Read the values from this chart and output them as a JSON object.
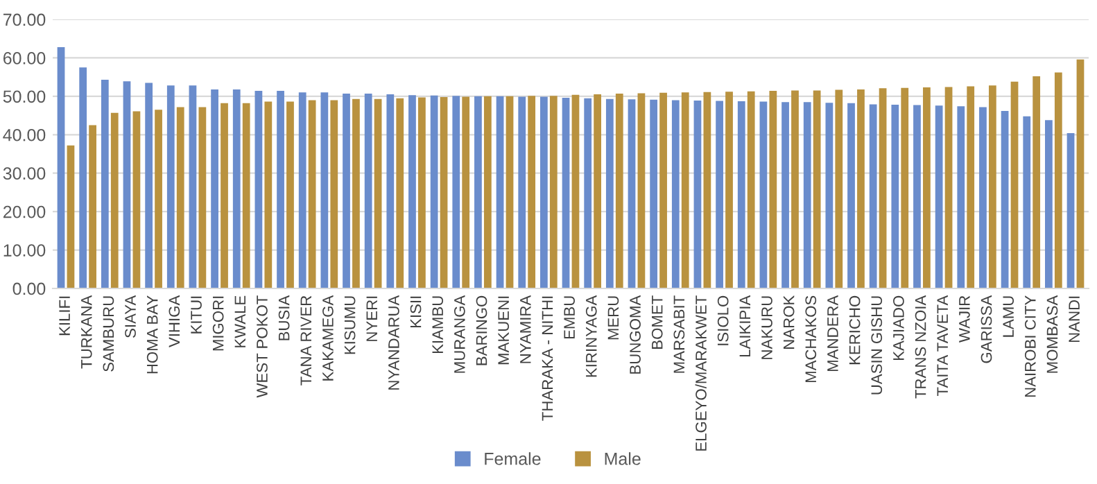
{
  "chart_data": {
    "type": "bar",
    "categories": [
      "KILIFI",
      "TURKANA",
      "SAMBURU",
      "SIAYA",
      "HOMA BAY",
      "VIHIGA",
      "KITUI",
      "MIGORI",
      "KWALE",
      "WEST POKOT",
      "BUSIA",
      "TANA RIVER",
      "KAKAMEGA",
      "KISUMU",
      "NYERI",
      "NYANDARUA",
      "KISII",
      "KIAMBU",
      "MURANGA",
      "BARINGO",
      "MAKUENI",
      "NYAMIRA",
      "THARAKA - NITHI",
      "EMBU",
      "KIRINYAGA",
      "MERU",
      "BUNGOMA",
      "BOMET",
      "MARSABIT",
      "ELGEYO/MARAKWET",
      "ISIOLO",
      "LAIKIPIA",
      "NAKURU",
      "NAROK",
      "MACHAKOS",
      "MANDERA",
      "KERICHO",
      "UASIN GISHU",
      "KAJIADO",
      "TRANS NZOIA",
      "TAITA TAVETA",
      "WAJIR",
      "GARISSA",
      "LAMU",
      "NAIROBI CITY",
      "MOMBASA",
      "NANDI"
    ],
    "series": [
      {
        "name": "Female",
        "color": "#6a8ccc",
        "values": [
          62.8,
          57.5,
          54.3,
          53.9,
          53.5,
          52.8,
          52.8,
          51.8,
          51.8,
          51.4,
          51.4,
          51.0,
          51.0,
          50.7,
          50.7,
          50.5,
          50.3,
          50.2,
          50.1,
          50.0,
          50.0,
          49.9,
          49.9,
          49.6,
          49.5,
          49.3,
          49.2,
          49.1,
          49.0,
          48.9,
          48.8,
          48.7,
          48.6,
          48.5,
          48.5,
          48.3,
          48.2,
          47.9,
          47.8,
          47.7,
          47.6,
          47.4,
          47.2,
          46.2,
          44.8,
          43.8,
          40.4
        ]
      },
      {
        "name": "Male",
        "color": "#b9923f",
        "values": [
          37.2,
          42.5,
          45.7,
          46.1,
          46.5,
          47.2,
          47.2,
          48.2,
          48.2,
          48.6,
          48.6,
          49.0,
          49.0,
          49.3,
          49.3,
          49.5,
          49.7,
          49.8,
          49.9,
          50.0,
          50.0,
          50.1,
          50.1,
          50.4,
          50.5,
          50.7,
          50.8,
          50.9,
          51.0,
          51.1,
          51.2,
          51.3,
          51.4,
          51.5,
          51.5,
          51.7,
          51.8,
          52.1,
          52.2,
          52.3,
          52.4,
          52.6,
          52.8,
          53.8,
          55.2,
          56.2,
          59.6
        ]
      }
    ],
    "ylim": [
      0,
      70
    ],
    "yticks": [
      {
        "value": 0,
        "label": "0.00"
      },
      {
        "value": 10,
        "label": "10.00"
      },
      {
        "value": 20,
        "label": "20.00"
      },
      {
        "value": 30,
        "label": "30.00"
      },
      {
        "value": 40,
        "label": "40.00"
      },
      {
        "value": 50,
        "label": "50.00"
      },
      {
        "value": 60,
        "label": "60.00"
      },
      {
        "value": 70,
        "label": "70.00"
      }
    ],
    "grid": "y",
    "legend": "bottom"
  }
}
